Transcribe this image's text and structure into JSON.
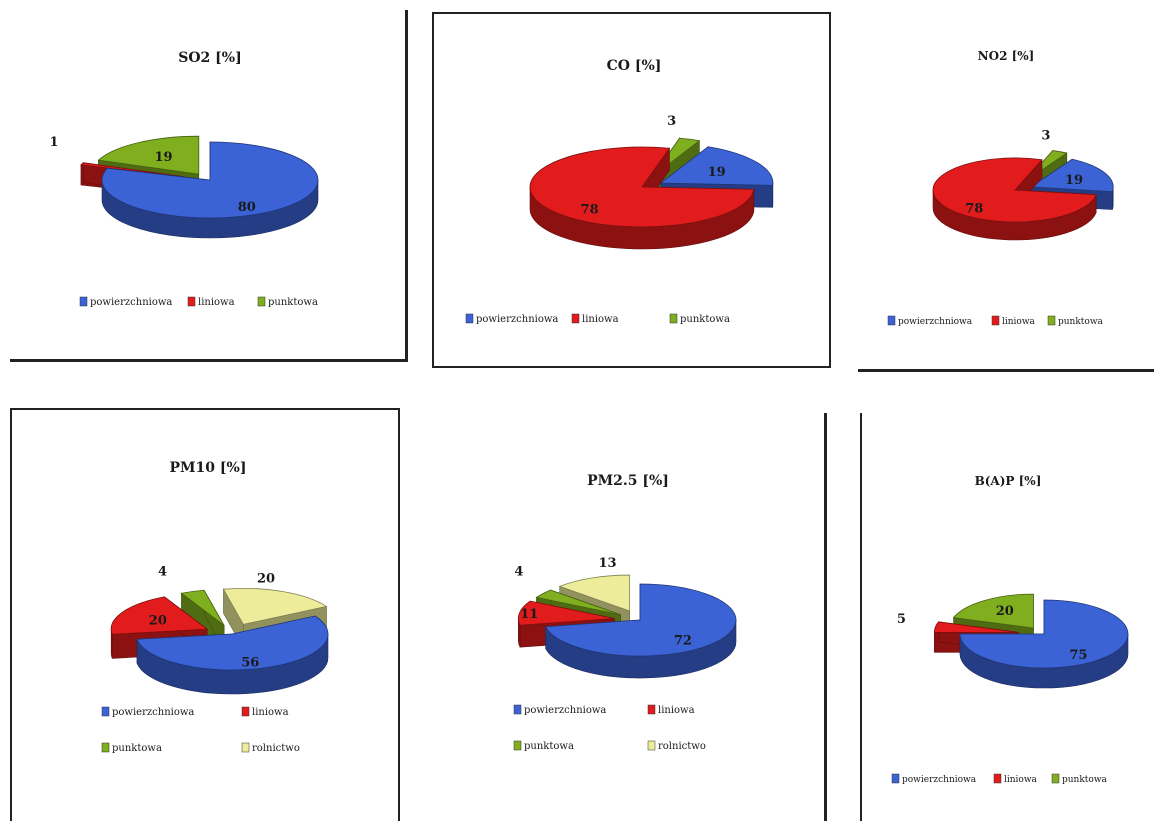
{
  "chart_data": [
    {
      "type": "pie",
      "title": "SO2 [%]",
      "slices": [
        {
          "label": "powierzchniowa",
          "value": 80
        },
        {
          "label": "liniowa",
          "value": 1
        },
        {
          "label": "punktowa",
          "value": 19
        }
      ],
      "legend": [
        "powierzchniowa",
        "liniowa",
        "punktowa"
      ]
    },
    {
      "type": "pie",
      "title": "CO [%]",
      "slices": [
        {
          "label": "powierzchniowa",
          "value": 19
        },
        {
          "label": "liniowa",
          "value": 78
        },
        {
          "label": "punktowa",
          "value": 3
        }
      ],
      "legend": [
        "powierzchniowa",
        "liniowa",
        "punktowa"
      ]
    },
    {
      "type": "pie",
      "title": "NO2 [%]",
      "slices": [
        {
          "label": "powierzchniowa",
          "value": 19
        },
        {
          "label": "liniowa",
          "value": 78
        },
        {
          "label": "punktowa",
          "value": 3
        }
      ],
      "legend": [
        "powierzchniowa",
        "liniowa",
        "punktowa"
      ]
    },
    {
      "type": "pie",
      "title": "PM10 [%]",
      "slices": [
        {
          "label": "powierzchniowa",
          "value": 56
        },
        {
          "label": "liniowa",
          "value": 20
        },
        {
          "label": "punktowa",
          "value": 4
        },
        {
          "label": "rolnictwo",
          "value": 20
        }
      ],
      "legend": [
        "powierzchniowa",
        "liniowa",
        "punktowa",
        "rolnictwo"
      ]
    },
    {
      "type": "pie",
      "title": "PM2.5 [%]",
      "slices": [
        {
          "label": "powierzchniowa",
          "value": 72
        },
        {
          "label": "liniowa",
          "value": 11
        },
        {
          "label": "punktowa",
          "value": 4
        },
        {
          "label": "rolnictwo",
          "value": 13
        }
      ],
      "legend": [
        "powierzchniowa",
        "liniowa",
        "punktowa",
        "rolnictwo"
      ]
    },
    {
      "type": "pie",
      "title": "B(A)P [%]",
      "slices": [
        {
          "label": "powierzchniowa",
          "value": 75
        },
        {
          "label": "liniowa",
          "value": 5
        },
        {
          "label": "punktowa",
          "value": 20
        }
      ],
      "legend": [
        "powierzchniowa",
        "liniowa",
        "punktowa"
      ]
    }
  ],
  "colors": {
    "powierzchniowa": "#3b63d6",
    "liniowa": "#e21c1c",
    "punktowa": "#7fae1e",
    "rolnictwo": "#ecec9a"
  }
}
